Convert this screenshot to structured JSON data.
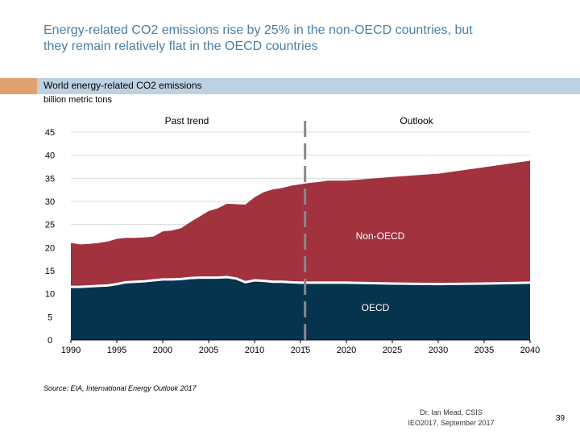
{
  "slide": {
    "title_line1": "Energy-related CO2 emissions rise by 25% in the non-OECD countries, but",
    "title_line2": "they remain relatively flat in the OECD countries",
    "source": "Source: EIA, International Energy Outlook 2017",
    "author_line1": "Dr. Ian Mead, CSIS",
    "author_line2": "IEO2017, September 2017",
    "page_number": "39"
  },
  "colors": {
    "title": "#4a7fa8",
    "oecd": "#06344f",
    "non_oecd": "#a1323e",
    "divider": "#888888",
    "accent_orange": "#e0a070",
    "accent_blue": "#bdd1e3"
  },
  "chart_data": {
    "type": "area",
    "stacked": true,
    "title": "World energy-related CO2 emissions",
    "ylabel": "billion metric tons",
    "xlim": [
      1990,
      2040
    ],
    "ylim": [
      0,
      45
    ],
    "xticks": [
      1990,
      1995,
      2000,
      2005,
      2010,
      2015,
      2020,
      2025,
      2030,
      2035,
      2040
    ],
    "yticks": [
      0,
      5,
      10,
      15,
      20,
      25,
      30,
      35,
      40,
      45
    ],
    "divider_year": 2015.5,
    "region_labels": {
      "past": "Past trend",
      "outlook": "Outlook"
    },
    "x": [
      1990,
      1991,
      1992,
      1993,
      1994,
      1995,
      1996,
      1997,
      1998,
      1999,
      2000,
      2001,
      2002,
      2003,
      2004,
      2005,
      2006,
      2007,
      2008,
      2009,
      2010,
      2011,
      2012,
      2013,
      2014,
      2015,
      2016,
      2017,
      2018,
      2019,
      2020,
      2025,
      2030,
      2035,
      2040
    ],
    "series": [
      {
        "name": "OECD",
        "label": "OECD",
        "values": [
          11.5,
          11.5,
          11.6,
          11.7,
          11.8,
          12.1,
          12.5,
          12.6,
          12.7,
          12.9,
          13.1,
          13.1,
          13.2,
          13.4,
          13.5,
          13.5,
          13.5,
          13.6,
          13.3,
          12.5,
          12.9,
          12.8,
          12.6,
          12.6,
          12.5,
          12.4,
          12.4,
          12.4,
          12.4,
          12.4,
          12.4,
          12.2,
          12.1,
          12.2,
          12.4
        ]
      },
      {
        "name": "Non-OECD",
        "label": "Non-OECD",
        "values": [
          9.5,
          9.2,
          9.2,
          9.3,
          9.5,
          9.8,
          9.6,
          9.5,
          9.5,
          9.5,
          10.4,
          10.6,
          11.0,
          12.1,
          13.2,
          14.4,
          15.0,
          15.9,
          16.1,
          16.8,
          18.0,
          19.2,
          20.0,
          20.3,
          20.9,
          21.3,
          21.6,
          21.8,
          22.1,
          22.1,
          22.1,
          23.1,
          23.9,
          25.2,
          26.4
        ]
      }
    ],
    "totals": [
      21.0,
      20.7,
      20.8,
      21.0,
      21.3,
      21.9,
      22.1,
      22.1,
      22.2,
      22.4,
      23.5,
      23.7,
      24.2,
      25.5,
      26.7,
      27.9,
      28.5,
      29.5,
      29.4,
      29.3,
      30.9,
      32.0,
      32.6,
      32.9,
      33.4,
      33.7,
      34.0,
      34.2,
      34.5,
      34.5,
      34.5,
      35.3,
      36.0,
      37.4,
      38.8
    ]
  }
}
